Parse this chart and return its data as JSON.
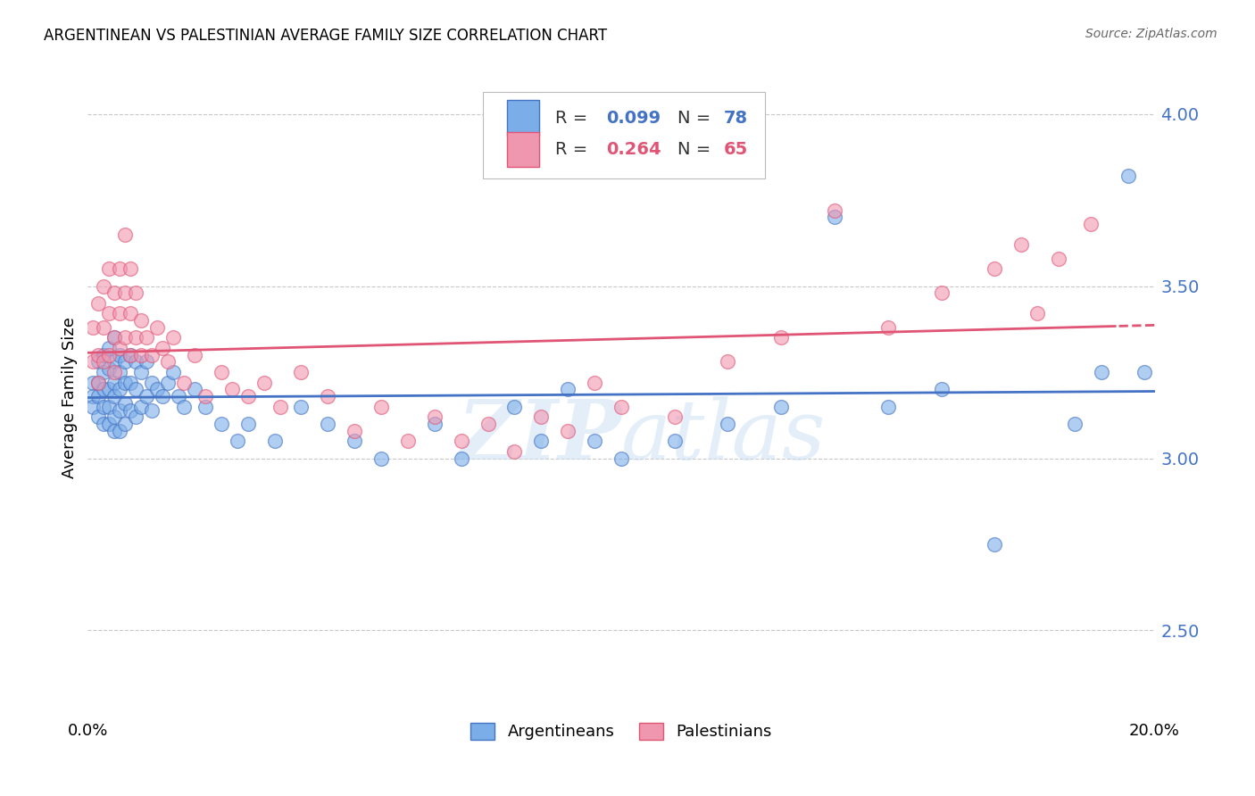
{
  "title": "ARGENTINEAN VS PALESTINIAN AVERAGE FAMILY SIZE CORRELATION CHART",
  "source": "Source: ZipAtlas.com",
  "ylabel": "Average Family Size",
  "yticks_right": [
    2.5,
    3.0,
    3.5,
    4.0
  ],
  "xlim": [
    0.0,
    0.2
  ],
  "ylim": [
    2.25,
    4.1
  ],
  "blue_color": "#7baee8",
  "pink_color": "#f097b0",
  "blue_line_color": "#4472c4",
  "pink_line_color": "#e05575",
  "background_color": "#ffffff",
  "grid_color": "#c8c8c8",
  "watermark": "ZIPatlas",
  "blue_R": 0.099,
  "blue_N": 78,
  "pink_R": 0.264,
  "pink_N": 65,
  "blue_x": [
    0.001,
    0.001,
    0.001,
    0.002,
    0.002,
    0.002,
    0.002,
    0.003,
    0.003,
    0.003,
    0.003,
    0.003,
    0.004,
    0.004,
    0.004,
    0.004,
    0.004,
    0.005,
    0.005,
    0.005,
    0.005,
    0.005,
    0.005,
    0.006,
    0.006,
    0.006,
    0.006,
    0.006,
    0.007,
    0.007,
    0.007,
    0.007,
    0.008,
    0.008,
    0.008,
    0.009,
    0.009,
    0.009,
    0.01,
    0.01,
    0.011,
    0.011,
    0.012,
    0.012,
    0.013,
    0.014,
    0.015,
    0.016,
    0.017,
    0.018,
    0.02,
    0.022,
    0.025,
    0.028,
    0.03,
    0.035,
    0.04,
    0.045,
    0.05,
    0.055,
    0.065,
    0.07,
    0.08,
    0.085,
    0.09,
    0.095,
    0.1,
    0.11,
    0.12,
    0.13,
    0.14,
    0.15,
    0.16,
    0.17,
    0.185,
    0.19,
    0.195,
    0.198
  ],
  "blue_y": [
    3.22,
    3.18,
    3.15,
    3.28,
    3.22,
    3.18,
    3.12,
    3.3,
    3.25,
    3.2,
    3.15,
    3.1,
    3.32,
    3.26,
    3.2,
    3.15,
    3.1,
    3.35,
    3.28,
    3.22,
    3.18,
    3.12,
    3.08,
    3.3,
    3.25,
    3.2,
    3.14,
    3.08,
    3.28,
    3.22,
    3.16,
    3.1,
    3.3,
    3.22,
    3.14,
    3.28,
    3.2,
    3.12,
    3.25,
    3.15,
    3.28,
    3.18,
    3.22,
    3.14,
    3.2,
    3.18,
    3.22,
    3.25,
    3.18,
    3.15,
    3.2,
    3.15,
    3.1,
    3.05,
    3.1,
    3.05,
    3.15,
    3.1,
    3.05,
    3.0,
    3.1,
    3.0,
    3.15,
    3.05,
    3.2,
    3.05,
    3.0,
    3.05,
    3.1,
    3.15,
    3.7,
    3.15,
    3.2,
    2.75,
    3.1,
    3.25,
    3.82,
    3.25
  ],
  "pink_x": [
    0.001,
    0.001,
    0.002,
    0.002,
    0.002,
    0.003,
    0.003,
    0.003,
    0.004,
    0.004,
    0.004,
    0.005,
    0.005,
    0.005,
    0.006,
    0.006,
    0.006,
    0.007,
    0.007,
    0.007,
    0.008,
    0.008,
    0.008,
    0.009,
    0.009,
    0.01,
    0.01,
    0.011,
    0.012,
    0.013,
    0.014,
    0.015,
    0.016,
    0.018,
    0.02,
    0.022,
    0.025,
    0.027,
    0.03,
    0.033,
    0.036,
    0.04,
    0.045,
    0.05,
    0.055,
    0.06,
    0.065,
    0.07,
    0.075,
    0.08,
    0.085,
    0.09,
    0.095,
    0.1,
    0.11,
    0.12,
    0.13,
    0.14,
    0.15,
    0.16,
    0.17,
    0.175,
    0.178,
    0.182,
    0.188
  ],
  "pink_y": [
    3.38,
    3.28,
    3.45,
    3.3,
    3.22,
    3.5,
    3.38,
    3.28,
    3.55,
    3.42,
    3.3,
    3.48,
    3.35,
    3.25,
    3.55,
    3.42,
    3.32,
    3.65,
    3.48,
    3.35,
    3.55,
    3.42,
    3.3,
    3.48,
    3.35,
    3.4,
    3.3,
    3.35,
    3.3,
    3.38,
    3.32,
    3.28,
    3.35,
    3.22,
    3.3,
    3.18,
    3.25,
    3.2,
    3.18,
    3.22,
    3.15,
    3.25,
    3.18,
    3.08,
    3.15,
    3.05,
    3.12,
    3.05,
    3.1,
    3.02,
    3.12,
    3.08,
    3.22,
    3.15,
    3.12,
    3.28,
    3.35,
    3.72,
    3.38,
    3.48,
    3.55,
    3.62,
    3.42,
    3.58,
    3.68
  ]
}
